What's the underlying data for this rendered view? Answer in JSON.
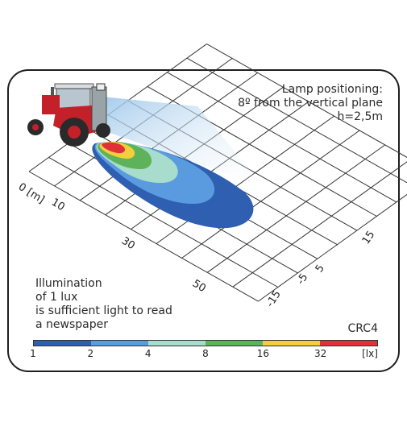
{
  "lamp_note": [
    "Lamp positioning:",
    "8º from the vertical plane",
    "h=2,5m"
  ],
  "illumination_note": [
    "Illumination",
    "of 1 lux",
    "is sufficient light to read",
    "a newspaper"
  ],
  "model": "CRC4",
  "distance_labels": [
    "0 [m]",
    "10",
    "30",
    "50"
  ],
  "lateral_labels": [
    "15",
    "5",
    "-5",
    "-15"
  ],
  "scale": {
    "labels": [
      "1",
      "2",
      "4",
      "8",
      "16",
      "32",
      "[lx]"
    ],
    "colors": [
      "#2f5fb0",
      "#5a9be0",
      "#a8dccd",
      "#5eb35a",
      "#f2cf3c",
      "#e0303a"
    ]
  },
  "colors": {
    "lux_1": "#2f5fb0",
    "lux_2": "#5a9be0",
    "lux_4": "#a8dccd",
    "lux_8": "#5eb35a",
    "lux_16": "#f2cf3c",
    "lux_32": "#e0303a",
    "tractor": "#c4202a",
    "light_cone": "#cfe3f3"
  },
  "icons": [
    "tractor-icon"
  ]
}
